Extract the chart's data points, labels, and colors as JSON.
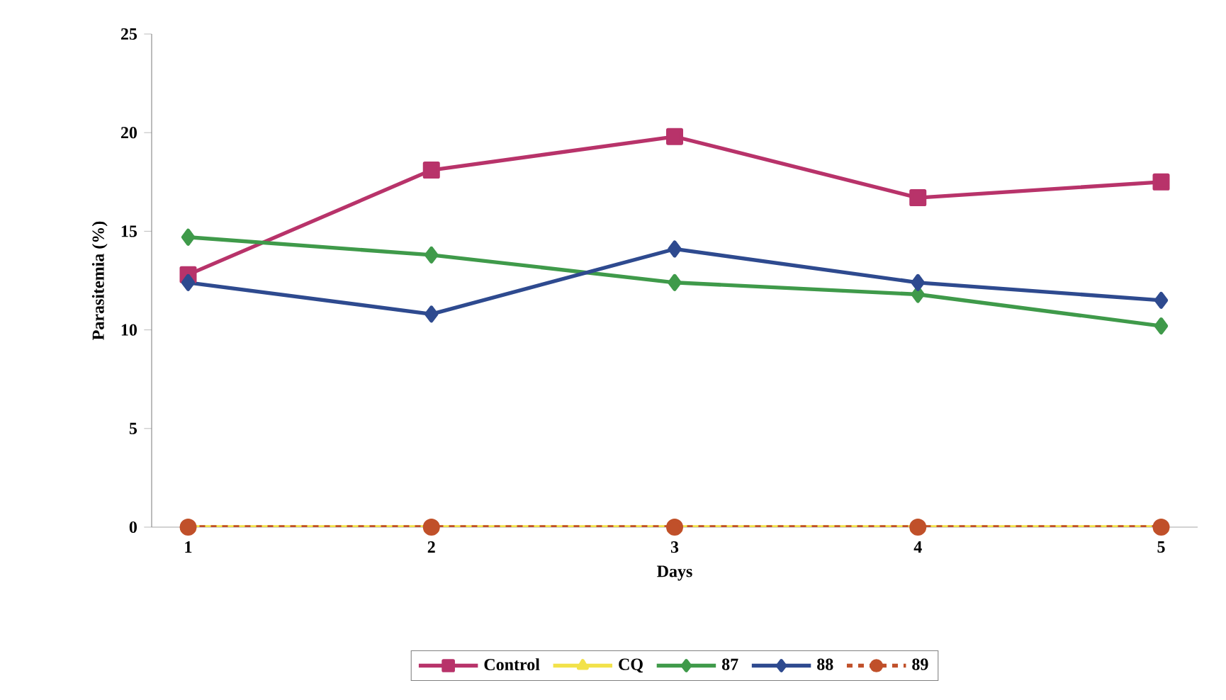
{
  "chart_data": {
    "type": "line",
    "xlabel": "Days",
    "ylabel": "Parasitemia (%)",
    "categories": [
      "1",
      "2",
      "3",
      "4",
      "5"
    ],
    "ylim": [
      0,
      25
    ],
    "yticks": [
      0,
      5,
      10,
      15,
      20,
      25
    ],
    "grid": false,
    "legend": "bottom",
    "series": [
      {
        "name": "Control",
        "color": "#b8336a",
        "marker": "square",
        "line_style": "solid",
        "values": [
          12.8,
          18.1,
          19.8,
          16.7,
          17.5
        ]
      },
      {
        "name": "CQ",
        "color": "#f2e24a",
        "marker": "triangle",
        "line_style": "solid",
        "values": [
          0,
          0,
          0,
          0,
          0
        ]
      },
      {
        "name": "87",
        "color": "#3f9a4a",
        "marker": "diamond",
        "line_style": "solid",
        "values": [
          14.7,
          13.8,
          12.4,
          11.8,
          10.2
        ]
      },
      {
        "name": "88",
        "color": "#2e4a8f",
        "marker": "diamond",
        "line_style": "solid",
        "values": [
          12.4,
          10.8,
          14.1,
          12.4,
          11.5
        ]
      },
      {
        "name": "89",
        "color": "#c0502a",
        "marker": "circle",
        "line_style": "dashed",
        "values": [
          0,
          0,
          0,
          0,
          0
        ]
      }
    ]
  }
}
